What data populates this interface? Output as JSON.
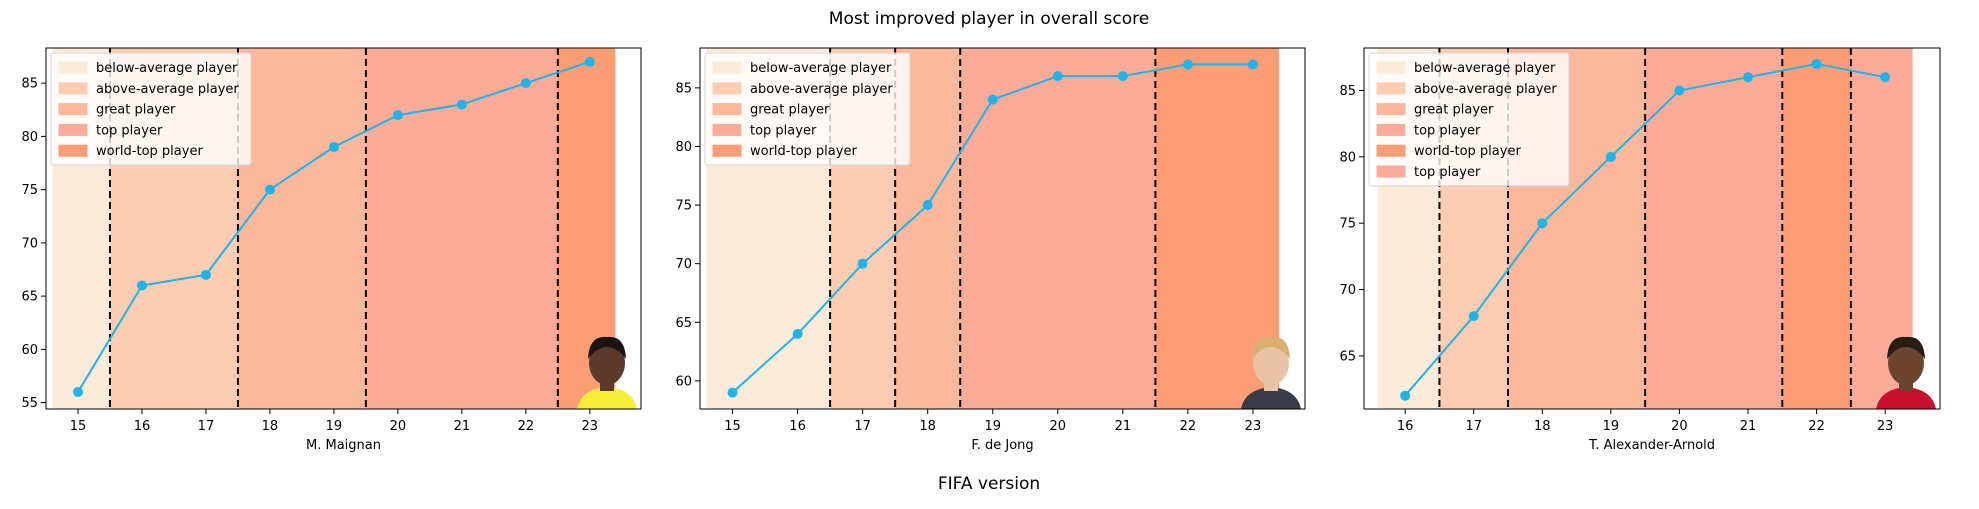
{
  "figure": {
    "title": "Most improved player in overall score",
    "xlabel": "FIFA version"
  },
  "colors": {
    "line": "#1fb3e8",
    "vline": "#000000",
    "bands": {
      "below-average player": "#fdebd9",
      "above-average player": "#fccdb2",
      "great player": "#fcb89c",
      "top player": "#fcab98",
      "world-top player": "#fd9d76"
    }
  },
  "chart_data": [
    {
      "type": "line",
      "player": "M. Maignan",
      "xlabel": "M. Maignan",
      "x": [
        15,
        16,
        17,
        18,
        19,
        20,
        21,
        22,
        23
      ],
      "y": [
        56,
        66,
        67,
        75,
        79,
        82,
        83,
        85,
        87
      ],
      "xlim": [
        14.5,
        23.8
      ],
      "ylim": [
        54.4,
        88.3
      ],
      "yticks": [
        55,
        60,
        65,
        70,
        75,
        80,
        85
      ],
      "bands": [
        {
          "label": "below-average player",
          "from": 14.6,
          "to": 15.5
        },
        {
          "label": "above-average player",
          "from": 15.5,
          "to": 17.5
        },
        {
          "label": "great player",
          "from": 17.5,
          "to": 19.5
        },
        {
          "label": "top player",
          "from": 19.5,
          "to": 22.5
        },
        {
          "label": "world-top player",
          "from": 22.5,
          "to": 23.4
        }
      ],
      "vlines": [
        15.5,
        17.5,
        19.5,
        22.5
      ],
      "legend": [
        "below-average player",
        "above-average player",
        "great player",
        "top player",
        "world-top player"
      ],
      "legend_loc": "upper left",
      "grid": false
    },
    {
      "type": "line",
      "player": "F. de Jong",
      "xlabel": "F. de Jong",
      "x": [
        15,
        16,
        17,
        18,
        19,
        20,
        21,
        22,
        23
      ],
      "y": [
        59,
        64,
        70,
        75,
        84,
        86,
        86,
        87,
        87
      ],
      "xlim": [
        14.5,
        23.8
      ],
      "ylim": [
        57.6,
        88.4
      ],
      "yticks": [
        60,
        65,
        70,
        75,
        80,
        85
      ],
      "bands": [
        {
          "label": "below-average player",
          "from": 14.6,
          "to": 16.5
        },
        {
          "label": "above-average player",
          "from": 16.5,
          "to": 17.5
        },
        {
          "label": "great player",
          "from": 17.5,
          "to": 18.5
        },
        {
          "label": "top player",
          "from": 18.5,
          "to": 21.5
        },
        {
          "label": "world-top player",
          "from": 21.5,
          "to": 23.4
        }
      ],
      "vlines": [
        16.5,
        17.5,
        18.5,
        21.5
      ],
      "legend": [
        "below-average player",
        "above-average player",
        "great player",
        "top player",
        "world-top player"
      ],
      "legend_loc": "upper left",
      "grid": false
    },
    {
      "type": "line",
      "player": "T. Alexander-Arnold",
      "xlabel": "T. Alexander-Arnold",
      "x": [
        16,
        17,
        18,
        19,
        20,
        21,
        22,
        23
      ],
      "y": [
        62,
        68,
        75,
        80,
        85,
        86,
        87,
        86
      ],
      "xlim": [
        15.4,
        23.8
      ],
      "ylim": [
        61.0,
        88.2
      ],
      "yticks": [
        65,
        70,
        75,
        80,
        85
      ],
      "bands": [
        {
          "label": "below-average player",
          "from": 15.6,
          "to": 16.5
        },
        {
          "label": "above-average player",
          "from": 16.5,
          "to": 17.5
        },
        {
          "label": "great player",
          "from": 17.5,
          "to": 19.5
        },
        {
          "label": "top player",
          "from": 19.5,
          "to": 21.5
        },
        {
          "label": "world-top player",
          "from": 21.5,
          "to": 22.5
        },
        {
          "label": "top player",
          "from": 22.5,
          "to": 23.4
        }
      ],
      "vlines": [
        16.5,
        17.5,
        19.5,
        21.5,
        22.5
      ],
      "legend": [
        "below-average player",
        "above-average player",
        "great player",
        "top player",
        "world-top player",
        "top player"
      ],
      "legend_loc": "upper left",
      "grid": false
    }
  ]
}
